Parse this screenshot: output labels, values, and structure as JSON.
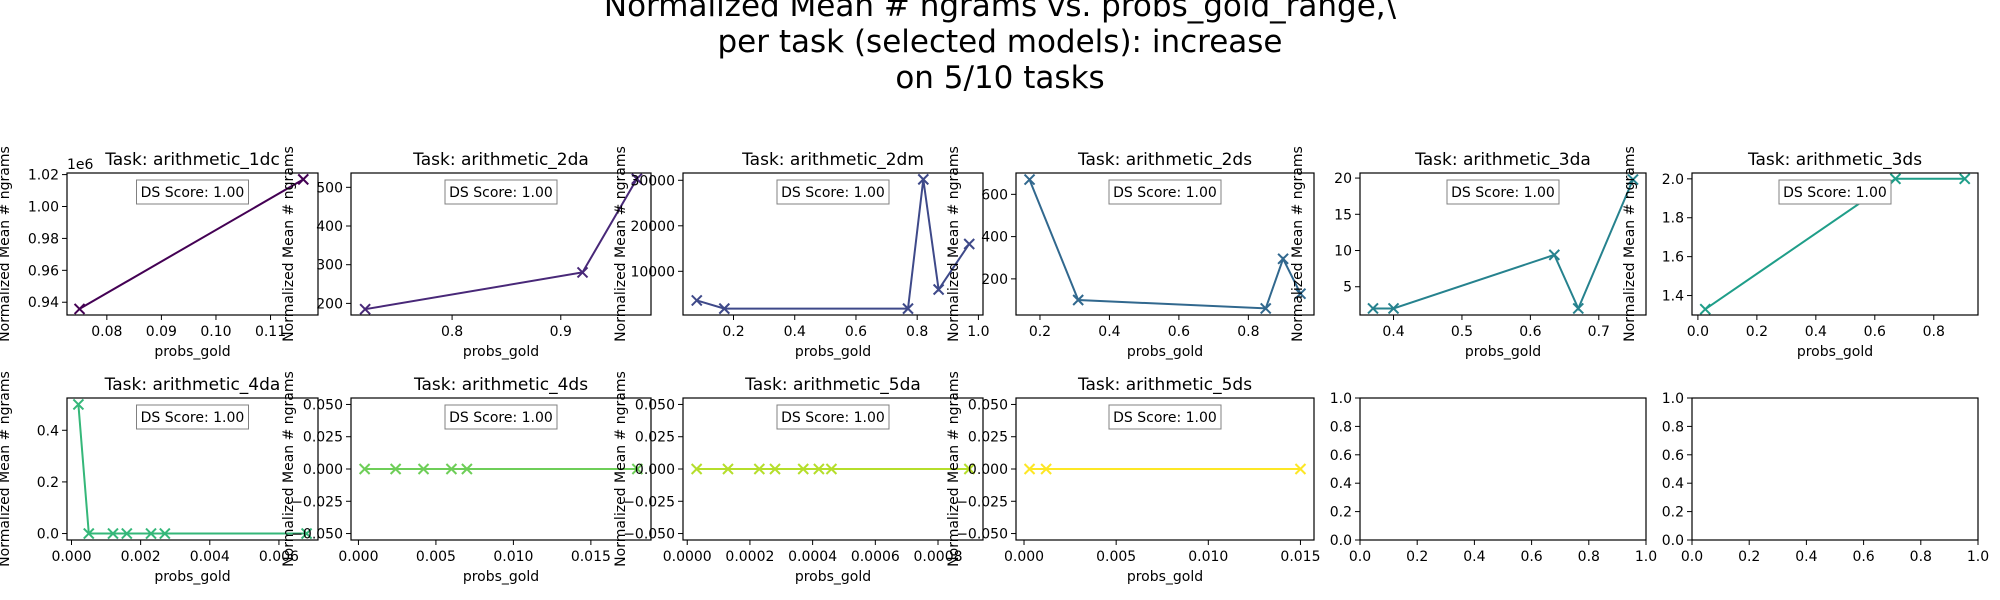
{
  "figure": {
    "title_lines": [
      "Normalized Mean # ngrams vs. probs_gold_range,\\",
      "per task (selected models): increase",
      "on 5/10 tasks"
    ]
  },
  "chart_data": [
    {
      "type": "line",
      "title": "Task: arithmetic_1dc",
      "xlabel": "probs_gold",
      "ylabel": "Normalized Mean # ngrams",
      "annotation": "DS Score: 1.00",
      "color": "#440154",
      "offset_text": "1e6",
      "x": [
        0.075,
        0.116
      ],
      "y": [
        935800,
        1017000
      ],
      "xlim": [
        0.0727,
        0.1187
      ],
      "ylim": [
        932000,
        1021000
      ],
      "xticks": [
        0.08,
        0.09,
        0.1,
        0.11
      ],
      "xtick_labels": [
        "0.08",
        "0.09",
        "0.10",
        "0.11"
      ],
      "yticks": [
        940000,
        960000,
        980000,
        1000000,
        1020000
      ],
      "ytick_labels": [
        "0.94",
        "0.96",
        "0.98",
        "1.00",
        "1.02"
      ]
    },
    {
      "type": "line",
      "title": "Task: arithmetic_2da",
      "xlabel": "probs_gold",
      "ylabel": "Normalized Mean # ngrams",
      "annotation": "DS Score: 1.00",
      "color": "#482878",
      "x": [
        0.72,
        0.92,
        0.97
      ],
      "y": [
        185,
        280,
        522
      ],
      "xlim": [
        0.707,
        0.983
      ],
      "ylim": [
        170,
        537
      ],
      "xticks": [
        0.8,
        0.9
      ],
      "xtick_labels": [
        "0.8",
        "0.9"
      ],
      "yticks": [
        200,
        300,
        400,
        500
      ],
      "ytick_labels": [
        "200",
        "300",
        "400",
        "500"
      ]
    },
    {
      "type": "line",
      "title": "Task: arithmetic_2dm",
      "xlabel": "probs_gold",
      "ylabel": "Normalized Mean # ngrams",
      "annotation": "DS Score: 1.00",
      "color": "#3e4989",
      "x": [
        0.08,
        0.17,
        0.77,
        0.82,
        0.87,
        0.97
      ],
      "y": [
        3600,
        1800,
        1800,
        30200,
        6000,
        16000
      ],
      "xlim": [
        0.035,
        1.015
      ],
      "ylim": [
        400,
        31600
      ],
      "xticks": [
        0.2,
        0.4,
        0.6,
        0.8,
        1.0
      ],
      "xtick_labels": [
        "0.2",
        "0.4",
        "0.6",
        "0.8",
        "1.0"
      ],
      "yticks": [
        10000,
        20000,
        30000
      ],
      "ytick_labels": [
        "10000",
        "20000",
        "30000"
      ]
    },
    {
      "type": "line",
      "title": "Task: arithmetic_2ds",
      "xlabel": "probs_gold",
      "ylabel": "Normalized Mean # ngrams",
      "annotation": "DS Score: 1.00",
      "color": "#31688e",
      "x": [
        0.17,
        0.31,
        0.85,
        0.9,
        0.95
      ],
      "y": [
        670,
        100,
        60,
        295,
        130
      ],
      "xlim": [
        0.131,
        0.989
      ],
      "ylim": [
        29,
        701
      ],
      "xticks": [
        0.2,
        0.4,
        0.6,
        0.8
      ],
      "xtick_labels": [
        "0.2",
        "0.4",
        "0.6",
        "0.8"
      ],
      "yticks": [
        200,
        400,
        600
      ],
      "ytick_labels": [
        "200",
        "400",
        "600"
      ]
    },
    {
      "type": "line",
      "title": "Task: arithmetic_3da",
      "xlabel": "probs_gold",
      "ylabel": "Normalized Mean # ngrams",
      "annotation": "DS Score: 1.00",
      "color": "#26828e",
      "x": [
        0.37,
        0.4,
        0.635,
        0.67,
        0.75
      ],
      "y": [
        2,
        2,
        9.4,
        2,
        19.8
      ],
      "xlim": [
        0.351,
        0.769
      ],
      "ylim": [
        1.1,
        20.7
      ],
      "xticks": [
        0.4,
        0.5,
        0.6,
        0.7
      ],
      "xtick_labels": [
        "0.4",
        "0.5",
        "0.6",
        "0.7"
      ],
      "yticks": [
        5,
        10,
        15,
        20
      ],
      "ytick_labels": [
        "5",
        "10",
        "15",
        "20"
      ]
    },
    {
      "type": "line",
      "title": "Task: arithmetic_3ds",
      "xlabel": "probs_gold",
      "ylabel": "Normalized Mean # ngrams",
      "annotation": "DS Score: 1.00",
      "color": "#1f9e89",
      "x": [
        0.025,
        0.67,
        0.905
      ],
      "y": [
        1.33,
        2.0,
        2.0
      ],
      "xlim": [
        -0.02,
        0.95
      ],
      "ylim": [
        1.3,
        2.03
      ],
      "xticks": [
        0.0,
        0.2,
        0.4,
        0.6,
        0.8
      ],
      "xtick_labels": [
        "0.0",
        "0.2",
        "0.4",
        "0.6",
        "0.8"
      ],
      "yticks": [
        1.4,
        1.6,
        1.8,
        2.0
      ],
      "ytick_labels": [
        "1.4",
        "1.6",
        "1.8",
        "2.0"
      ]
    },
    {
      "type": "line",
      "title": "Task: arithmetic_4da",
      "xlabel": "probs_gold",
      "ylabel": "Normalized Mean # ngrams",
      "annotation": "DS Score: 1.00",
      "color": "#35b779",
      "x": [
        0.0002,
        0.0005,
        0.0012,
        0.0016,
        0.0023,
        0.0027,
        0.0068
      ],
      "y": [
        0.5,
        0,
        0,
        0,
        0,
        0,
        0
      ],
      "xlim": [
        -0.00013,
        0.00713
      ],
      "ylim": [
        -0.025,
        0.525
      ],
      "xticks": [
        0.0,
        0.002,
        0.004,
        0.006
      ],
      "xtick_labels": [
        "0.000",
        "0.002",
        "0.004",
        "0.006"
      ],
      "yticks": [
        0.0,
        0.2,
        0.4
      ],
      "ytick_labels": [
        "0.0",
        "0.2",
        "0.4"
      ]
    },
    {
      "type": "line",
      "title": "Task: arithmetic_4ds",
      "xlabel": "probs_gold",
      "ylabel": "Normalized Mean # ngrams",
      "annotation": "DS Score: 1.00",
      "color": "#6ece58",
      "x": [
        0.0004,
        0.0024,
        0.0042,
        0.006,
        0.007,
        0.018
      ],
      "y": [
        0,
        0,
        0,
        0,
        0,
        0
      ],
      "xlim": [
        -0.00048,
        0.01888
      ],
      "ylim": [
        -0.055,
        0.055
      ],
      "xticks": [
        0.0,
        0.005,
        0.01,
        0.015
      ],
      "xtick_labels": [
        "0.000",
        "0.005",
        "0.010",
        "0.015"
      ],
      "yticks": [
        -0.05,
        -0.025,
        0.0,
        0.025,
        0.05
      ],
      "ytick_labels": [
        "−0.050",
        "−0.025",
        "0.000",
        "0.025",
        "0.050"
      ]
    },
    {
      "type": "line",
      "title": "Task: arithmetic_5da",
      "xlabel": "probs_gold",
      "ylabel": "Normalized Mean # ngrams",
      "annotation": "DS Score: 1.00",
      "color": "#b5de2b",
      "x": [
        3e-05,
        0.00013,
        0.00023,
        0.00028,
        0.00037,
        0.00042,
        0.00046,
        0.0009
      ],
      "y": [
        0,
        0,
        0,
        0,
        0,
        0,
        0,
        0
      ],
      "xlim": [
        -1.35e-05,
        0.0009435
      ],
      "ylim": [
        -0.055,
        0.055
      ],
      "xticks": [
        0.0,
        0.0002,
        0.0004,
        0.0006,
        0.0008
      ],
      "xtick_labels": [
        "0.0000",
        "0.0002",
        "0.0004",
        "0.0006",
        "0.0008"
      ],
      "yticks": [
        -0.05,
        -0.025,
        0.0,
        0.025,
        0.05
      ],
      "ytick_labels": [
        "−0.050",
        "−0.025",
        "0.000",
        "0.025",
        "0.050"
      ]
    },
    {
      "type": "line",
      "title": "Task: arithmetic_5ds",
      "xlabel": "probs_gold",
      "ylabel": "Normalized Mean # ngrams",
      "annotation": "DS Score: 1.00",
      "color": "#fde725",
      "x": [
        0.0003,
        0.0012,
        0.015
      ],
      "y": [
        0,
        0,
        0
      ],
      "xlim": [
        -0.000435,
        0.015735
      ],
      "ylim": [
        -0.055,
        0.055
      ],
      "xticks": [
        0.0,
        0.005,
        0.01,
        0.015
      ],
      "xtick_labels": [
        "0.000",
        "0.005",
        "0.010",
        "0.015"
      ],
      "yticks": [
        -0.05,
        -0.025,
        0.0,
        0.025,
        0.05
      ],
      "ytick_labels": [
        "−0.050",
        "−0.025",
        "0.000",
        "0.025",
        "0.050"
      ]
    },
    {
      "type": "line",
      "empty": true,
      "xlim": [
        0,
        1
      ],
      "ylim": [
        0,
        1
      ],
      "xticks": [
        0.0,
        0.2,
        0.4,
        0.6,
        0.8,
        1.0
      ],
      "xtick_labels": [
        "0.0",
        "0.2",
        "0.4",
        "0.6",
        "0.8",
        "1.0"
      ],
      "yticks": [
        0.0,
        0.2,
        0.4,
        0.6,
        0.8,
        1.0
      ],
      "ytick_labels": [
        "0.0",
        "0.2",
        "0.4",
        "0.6",
        "0.8",
        "1.0"
      ]
    },
    {
      "type": "line",
      "empty": true,
      "xlim": [
        0,
        1
      ],
      "ylim": [
        0,
        1
      ],
      "xticks": [
        0.0,
        0.2,
        0.4,
        0.6,
        0.8,
        1.0
      ],
      "xtick_labels": [
        "0.0",
        "0.2",
        "0.4",
        "0.6",
        "0.8",
        "1.0"
      ],
      "yticks": [
        0.0,
        0.2,
        0.4,
        0.6,
        0.8,
        1.0
      ],
      "ytick_labels": [
        "0.0",
        "0.2",
        "0.4",
        "0.6",
        "0.8",
        "1.0"
      ]
    }
  ]
}
